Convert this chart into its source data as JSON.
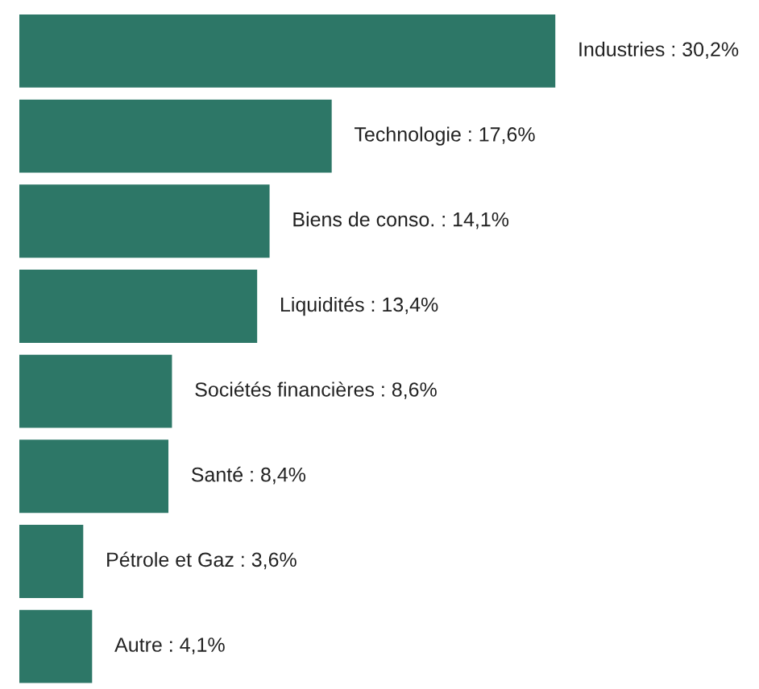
{
  "chart_data": {
    "type": "bar",
    "orientation": "horizontal",
    "categories": [
      null,
      null,
      null,
      null,
      null,
      null,
      null,
      null
    ],
    "values": [
      30.2,
      17.6,
      14.1,
      13.4,
      8.6,
      8.4,
      3.6,
      4.1
    ],
    "value_labels": [
      "Industries : 30,2%",
      "Technologie : 17,6%",
      "Biens de conso. : 14,1%",
      "Liquidités : 13,4%",
      "Sociétés financières : 8,6%",
      "Santé : 8,4%",
      "Pétrole et Gaz : 3,6%",
      "Autre : 4,1%"
    ],
    "color": "#2d7767",
    "grid": false,
    "legend": false
  }
}
